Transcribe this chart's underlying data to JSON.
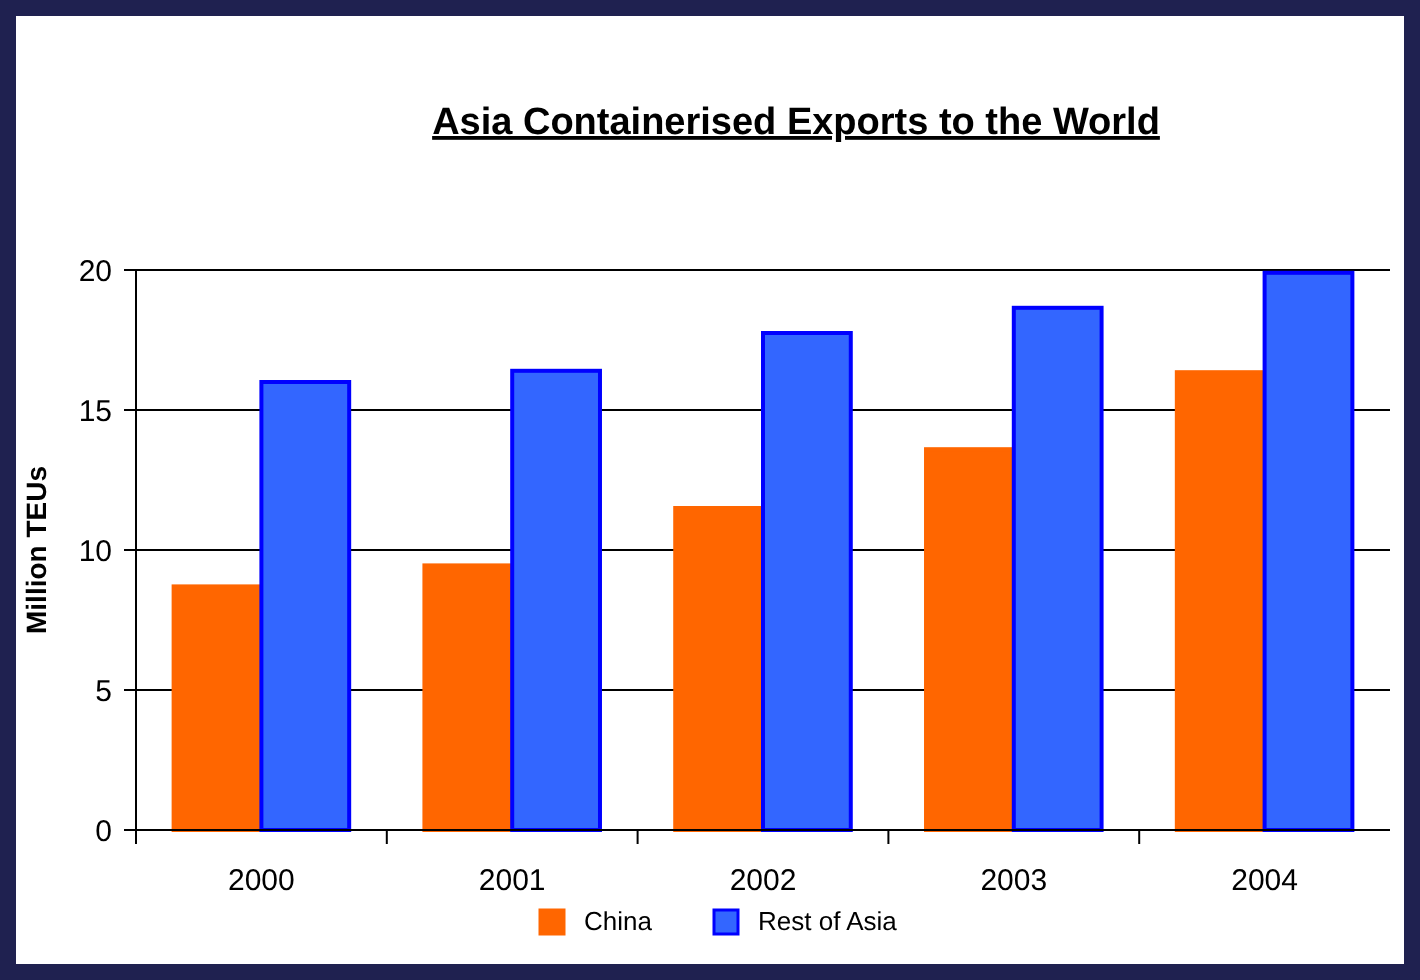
{
  "chart_data": {
    "type": "bar",
    "title": "Asia Containerised Exports to the World",
    "ylabel": "Million TEUs",
    "categories": [
      "2000",
      "2001",
      "2002",
      "2003",
      "2004"
    ],
    "series": [
      {
        "name": "China",
        "color": "#ff6600",
        "values": [
          8.7,
          9.45,
          11.5,
          13.6,
          16.35
        ]
      },
      {
        "name": "Rest of Asia",
        "color": "#3366ff",
        "values": [
          16.0,
          16.4,
          17.75,
          18.65,
          19.9
        ]
      }
    ],
    "ylim": [
      0,
      20
    ],
    "yticks": [
      0,
      5,
      10,
      15,
      20
    ],
    "grid": "y",
    "legend": "bottom"
  }
}
